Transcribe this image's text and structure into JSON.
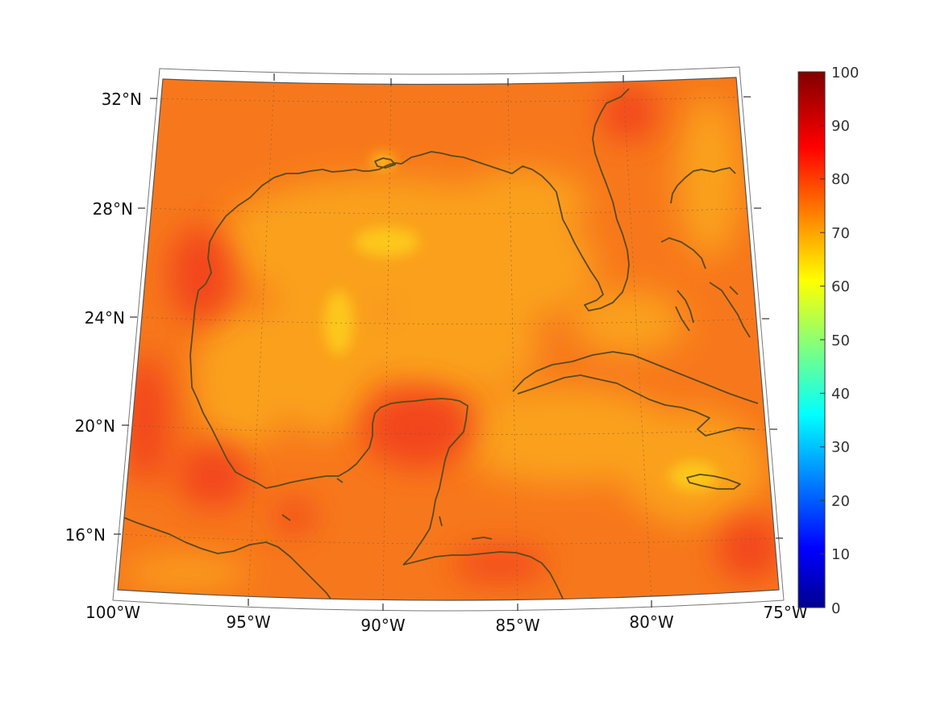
{
  "map": {
    "lat_labels": [
      "32°N",
      "28°N",
      "24°N",
      "20°N",
      "16°N"
    ],
    "lon_labels": [
      "100°W",
      "95°W",
      "90°W",
      "85°W",
      "80°W",
      "75°W"
    ],
    "colors": {
      "field_base": "#f7781c",
      "field_light": "#fba81d",
      "field_red": "#f2401a",
      "coast": "#5a4a1e",
      "frame": "#555555"
    }
  },
  "colorbar": {
    "ticks": [
      "100",
      "90",
      "80",
      "70",
      "60",
      "50",
      "40",
      "30",
      "20",
      "10",
      "0"
    ],
    "min": 0,
    "max": 100,
    "colormap": "jet"
  }
}
